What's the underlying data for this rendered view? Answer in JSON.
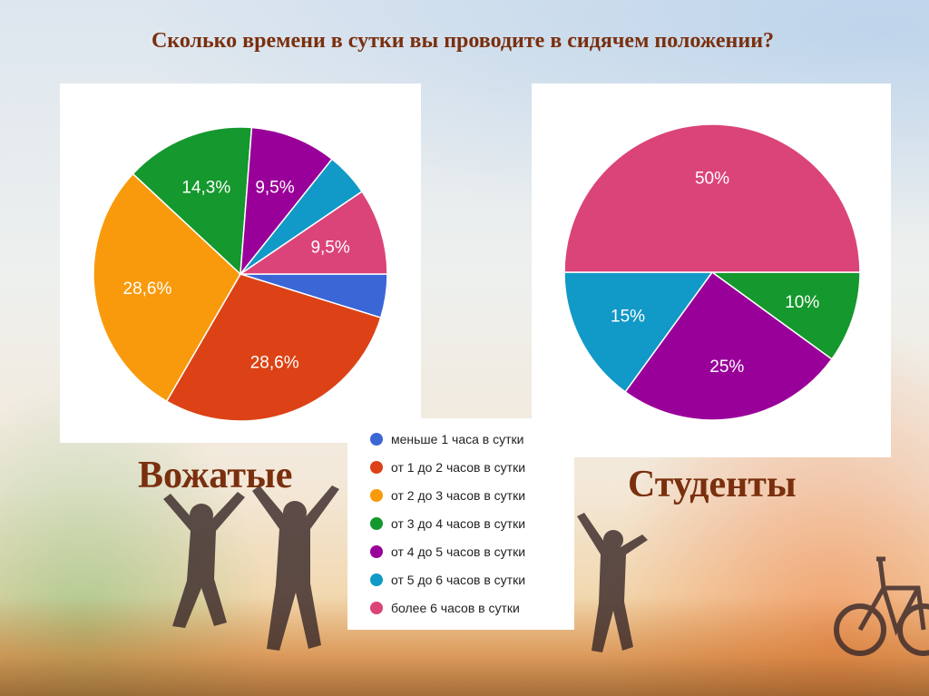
{
  "slide": {
    "title": "Сколько времени в сутки вы проводите в сидячем положении?"
  },
  "colors": {
    "title": "#7a2f0e",
    "categories": [
      "#3a66d6",
      "#dc4215",
      "#f89a0b",
      "#15982d",
      "#990099",
      "#1199c7",
      "#db4479"
    ]
  },
  "legend": {
    "items": [
      "меньше 1 часа в сутки",
      "от 1 до 2 часов в сутки",
      "от 2 до 3 часов в сутки",
      "от 3 до 4 часов в сутки",
      "от 4 до 5 часов в сутки",
      "от 5 до 6 часов в сутки",
      "более 6 часов в сутки"
    ]
  },
  "chart_data": [
    {
      "type": "pie",
      "label": "Вожатые",
      "categories": [
        "меньше 1 часа в сутки",
        "от 1 до 2 часов в сутки",
        "от 2 до 3 часов в сутки",
        "от 3 до 4 часов в сутки",
        "от 4 до 5 часов в сутки",
        "от 5 до 6 часов в сутки",
        "более 6 часов в сутки"
      ],
      "values": [
        4.8,
        28.6,
        28.6,
        14.3,
        9.5,
        4.8,
        9.5
      ],
      "data_labels": [
        "",
        "28,6%",
        "28,6%",
        "14,3%",
        "9,5%",
        "",
        "9,5%"
      ]
    },
    {
      "type": "pie",
      "label": "Студенты",
      "categories": [
        "меньше 1 часа в сутки",
        "от 1 до 2 часов в сутки",
        "от 2 до 3 часов в сутки",
        "от 3 до 4 часов в сутки",
        "от 4 до 5 часов в сутки",
        "от 5 до 6 часов в сутки",
        "более 6 часов в сутки"
      ],
      "values": [
        0,
        0,
        0,
        10,
        25,
        15,
        50
      ],
      "data_labels": [
        "",
        "",
        "",
        "10%",
        "25%",
        "15%",
        "50%"
      ]
    }
  ]
}
